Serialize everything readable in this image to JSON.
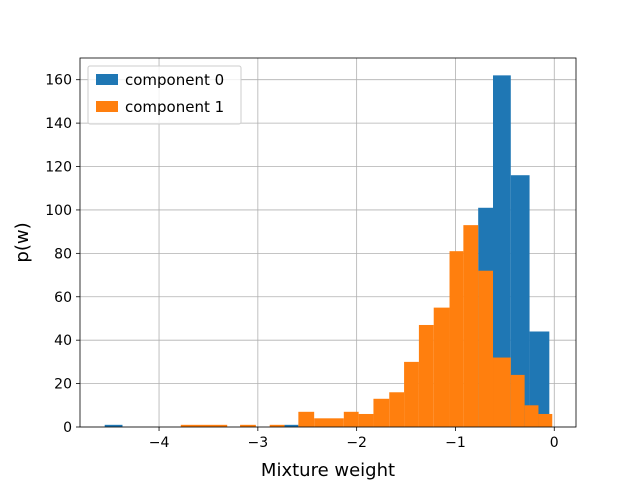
{
  "chart_data": {
    "type": "bar",
    "subtype": "histogram",
    "title": "",
    "xlabel": "Mixture weight",
    "ylabel": "p(w)",
    "xlim": [
      -4.8,
      0.22
    ],
    "ylim": [
      0,
      170
    ],
    "xticks": [
      -4,
      -3,
      -2,
      -1,
      0
    ],
    "xtick_labels": [
      "−4",
      "−3",
      "−2",
      "−1",
      "0"
    ],
    "yticks": [
      0,
      20,
      40,
      60,
      80,
      100,
      120,
      140,
      160
    ],
    "ytick_labels": [
      "0",
      "20",
      "40",
      "60",
      "80",
      "100",
      "120",
      "140",
      "160"
    ],
    "grid": true,
    "legend_position": "top-left",
    "series": [
      {
        "name": "component 0",
        "color": "#1f77b4",
        "bins": [
          {
            "x0": -4.55,
            "x1": -4.37,
            "value": 1
          },
          {
            "x0": -2.73,
            "x1": -2.59,
            "value": 1
          },
          {
            "x0": -0.77,
            "x1": -0.62,
            "value": 101
          },
          {
            "x0": -0.62,
            "x1": -0.44,
            "value": 162
          },
          {
            "x0": -0.44,
            "x1": -0.25,
            "value": 116
          },
          {
            "x0": -0.25,
            "x1": -0.05,
            "value": 44
          }
        ]
      },
      {
        "name": "component 1",
        "color": "#ff7f0e",
        "bins": [
          {
            "x0": -3.78,
            "x1": -3.31,
            "value": 1
          },
          {
            "x0": -3.18,
            "x1": -3.02,
            "value": 1
          },
          {
            "x0": -2.88,
            "x1": -2.73,
            "value": 1
          },
          {
            "x0": -2.59,
            "x1": -2.43,
            "value": 7
          },
          {
            "x0": -2.43,
            "x1": -2.13,
            "value": 4
          },
          {
            "x0": -2.13,
            "x1": -1.98,
            "value": 7
          },
          {
            "x0": -1.98,
            "x1": -1.83,
            "value": 6
          },
          {
            "x0": -1.83,
            "x1": -1.67,
            "value": 13
          },
          {
            "x0": -1.67,
            "x1": -1.52,
            "value": 16
          },
          {
            "x0": -1.52,
            "x1": -1.37,
            "value": 30
          },
          {
            "x0": -1.37,
            "x1": -1.22,
            "value": 47
          },
          {
            "x0": -1.22,
            "x1": -1.06,
            "value": 55
          },
          {
            "x0": -1.06,
            "x1": -0.92,
            "value": 81
          },
          {
            "x0": -0.92,
            "x1": -0.77,
            "value": 93
          },
          {
            "x0": -0.77,
            "x1": -0.62,
            "value": 72
          },
          {
            "x0": -0.62,
            "x1": -0.44,
            "value": 32
          },
          {
            "x0": -0.44,
            "x1": -0.3,
            "value": 24
          },
          {
            "x0": -0.3,
            "x1": -0.16,
            "value": 10
          },
          {
            "x0": -0.16,
            "x1": -0.02,
            "value": 6
          }
        ]
      }
    ]
  }
}
